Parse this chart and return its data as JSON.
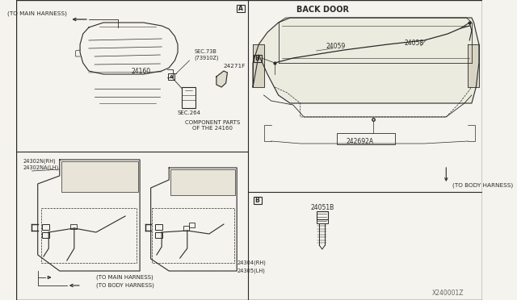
{
  "bg_color": "#f5f3ed",
  "line_color": "#2a2a2a",
  "title_back_door": "BACK DOOR",
  "watermark": "X240001Z",
  "labels": {
    "to_main_harness_top": "(TO MAIN HARNESS)",
    "to_main_harness_bot": "(TO MAIN HARNESS)",
    "to_body_harness_bot": "(TO BODY HARNESS)",
    "to_body_harness_right": "(TO BODY HARNESS)",
    "sec_73b": "SEC.73B\n(73910Z)",
    "sec_264": "SEC.264",
    "component_parts": "COMPONENT PARTS\nOF THE 24160",
    "part_24160": "24160",
    "part_24271F": "24271F",
    "part_24302N_RH": "24302N(RH)",
    "part_24302NA_LH": "24302NA(LH)",
    "part_24304_RH": "24304(RH)",
    "part_24305_LH": "24305(LH)",
    "part_24059": "24059",
    "part_24058": "24058",
    "part_242692A": "242692A",
    "part_24051B": "24051B"
  }
}
